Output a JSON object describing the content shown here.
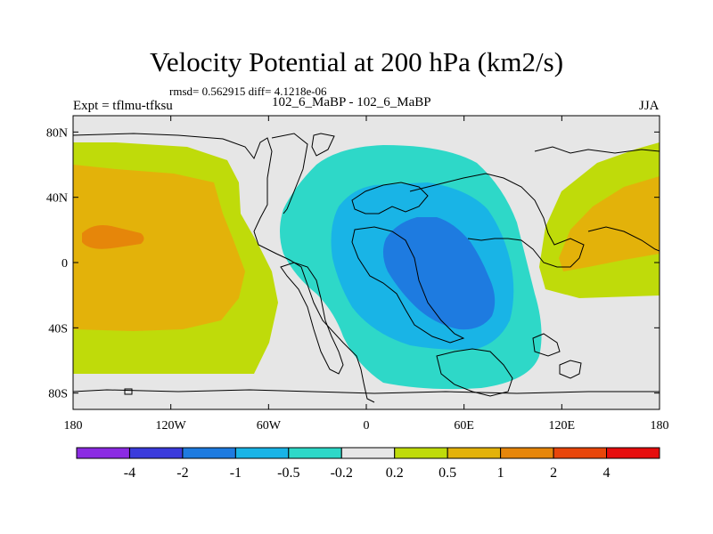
{
  "chart_data": {
    "type": "heatmap",
    "title": "Velocity Potential at 200 hPa (km2/s)",
    "stats_text": "rmsd= 0.562915 diff= 4.1218e-06",
    "left_label": "Expt = tflmu-tfksu",
    "center_label": "102_6_MaBP - 102_6_MaBP",
    "right_label": "JJA",
    "x_axis": {
      "range": [
        -180,
        180
      ],
      "tick_values": [
        -180,
        -120,
        -60,
        0,
        60,
        120,
        180
      ],
      "tick_labels": [
        "180",
        "120W",
        "60W",
        "0",
        "60E",
        "120E",
        "180"
      ]
    },
    "y_axis": {
      "range": [
        -90,
        90
      ],
      "tick_values": [
        80,
        40,
        0,
        -40,
        -80
      ],
      "tick_labels": [
        "80N",
        "40N",
        "0",
        "40S",
        "80S"
      ]
    },
    "colorbar": {
      "colors": [
        "#8b2be2",
        "#3b3bdc",
        "#1e7be0",
        "#19b4e6",
        "#2ed8c8",
        "#e6e6e6",
        "#bfdb0a",
        "#e3b20a",
        "#e6860a",
        "#e8460a",
        "#e60d0d"
      ],
      "labels": [
        "-4",
        "-2",
        "-1",
        "-0.5",
        "-0.2",
        "0.2",
        "0.5",
        "1",
        "2",
        "4"
      ]
    },
    "field_regions": [
      {
        "name": "eastern-hemisphere-negative",
        "level": -0.2,
        "center_lon": 50,
        "center_lat": 5
      },
      {
        "name": "eastern-hemisphere-negative",
        "level": -0.5,
        "center_lon": 50,
        "center_lat": 5
      },
      {
        "name": "eastern-hemisphere-negative",
        "level": -1,
        "center_lon": 55,
        "center_lat": 10
      },
      {
        "name": "pacific-positive",
        "level": 0.2,
        "center_lon": -155,
        "center_lat": 5
      },
      {
        "name": "pacific-positive",
        "level": 0.5,
        "center_lon": -155,
        "center_lat": 8
      },
      {
        "name": "pacific-positive",
        "level": 1,
        "center_lon": -165,
        "center_lat": 15
      }
    ],
    "background_level_range": [
      -0.2,
      0.2
    ]
  }
}
